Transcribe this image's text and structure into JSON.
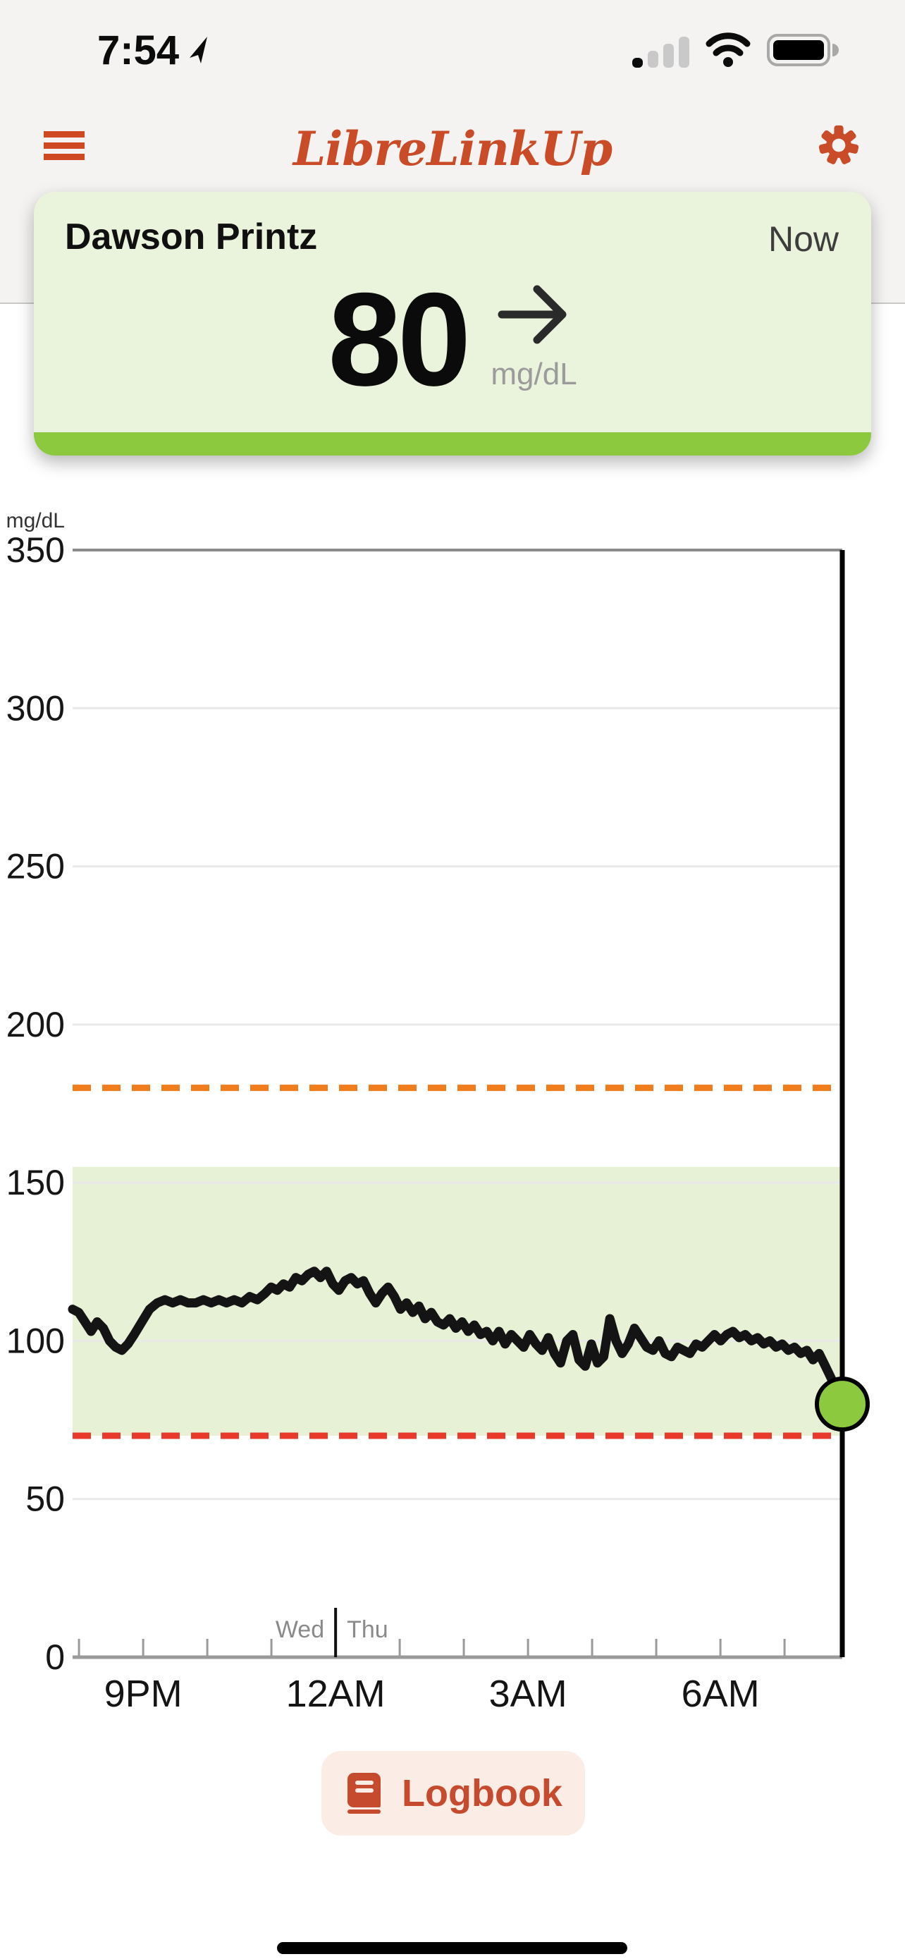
{
  "status_bar": {
    "time": "7:54",
    "icons": [
      "location-arrow",
      "cellular-signal-1-of-4",
      "wifi-full",
      "battery-full"
    ]
  },
  "header": {
    "title": "LibreLinkUp",
    "menu_icon": "hamburger-menu",
    "settings_icon": "gear"
  },
  "patient_card": {
    "name": "Dawson Printz",
    "timestamp_label": "Now",
    "glucose_value": "80",
    "glucose_unit": "mg/dL",
    "trend": "steady-right-arrow",
    "status_color": "#8dc93e",
    "card_background": "#eaf3db"
  },
  "chart_data": {
    "type": "line",
    "ylabel_unit": "mg/dL",
    "ylim": [
      0,
      350
    ],
    "yticks": [
      0,
      50,
      100,
      150,
      200,
      250,
      300,
      350
    ],
    "grid": "horizontal-only",
    "xticks": [
      {
        "label": "9PM",
        "ratio": 0.0917
      },
      {
        "label": "12AM",
        "ratio": 0.3417
      },
      {
        "label": "3AM",
        "ratio": 0.5917
      },
      {
        "label": "6AM",
        "ratio": 0.8417
      }
    ],
    "x_minor_tick_ratios": [
      0.0083,
      0.0917,
      0.175,
      0.2583,
      0.3417,
      0.425,
      0.5083,
      0.5917,
      0.675,
      0.7583,
      0.8417,
      0.925
    ],
    "x_window_hours": 12,
    "day_divider": {
      "ratio": 0.3417,
      "left_label": "Wed",
      "right_label": "Thu"
    },
    "high_threshold": {
      "value": 180,
      "color": "#ef7d1d",
      "style": "dashed"
    },
    "low_threshold": {
      "value": 70,
      "color": "#e9392b",
      "style": "dashed"
    },
    "target_band": {
      "low": 70,
      "high": 155,
      "color": "#e7f1d6"
    },
    "now_line": {
      "ratio": 1.0,
      "color": "#000000"
    },
    "series": [
      {
        "name": "glucose",
        "color": "#141414",
        "points": [
          [
            0.0,
            110
          ],
          [
            0.008,
            109
          ],
          [
            0.016,
            106
          ],
          [
            0.024,
            103
          ],
          [
            0.032,
            106
          ],
          [
            0.04,
            104
          ],
          [
            0.048,
            100
          ],
          [
            0.056,
            98
          ],
          [
            0.064,
            97
          ],
          [
            0.072,
            99
          ],
          [
            0.08,
            102
          ],
          [
            0.09,
            106
          ],
          [
            0.1,
            110
          ],
          [
            0.11,
            112
          ],
          [
            0.12,
            113
          ],
          [
            0.13,
            112
          ],
          [
            0.14,
            113
          ],
          [
            0.15,
            112
          ],
          [
            0.16,
            112
          ],
          [
            0.17,
            113
          ],
          [
            0.18,
            112
          ],
          [
            0.19,
            113
          ],
          [
            0.2,
            112
          ],
          [
            0.21,
            113
          ],
          [
            0.22,
            112
          ],
          [
            0.23,
            114
          ],
          [
            0.24,
            113
          ],
          [
            0.25,
            115
          ],
          [
            0.258,
            117
          ],
          [
            0.266,
            116
          ],
          [
            0.274,
            118
          ],
          [
            0.282,
            117
          ],
          [
            0.29,
            120
          ],
          [
            0.298,
            119
          ],
          [
            0.306,
            121
          ],
          [
            0.314,
            122
          ],
          [
            0.322,
            120
          ],
          [
            0.33,
            122
          ],
          [
            0.338,
            118
          ],
          [
            0.346,
            116
          ],
          [
            0.354,
            119
          ],
          [
            0.362,
            120
          ],
          [
            0.37,
            118
          ],
          [
            0.378,
            119
          ],
          [
            0.386,
            115
          ],
          [
            0.394,
            112
          ],
          [
            0.402,
            115
          ],
          [
            0.41,
            117
          ],
          [
            0.418,
            114
          ],
          [
            0.426,
            110
          ],
          [
            0.434,
            112
          ],
          [
            0.442,
            109
          ],
          [
            0.45,
            111
          ],
          [
            0.458,
            107
          ],
          [
            0.466,
            109
          ],
          [
            0.474,
            106
          ],
          [
            0.482,
            105
          ],
          [
            0.49,
            107
          ],
          [
            0.498,
            104
          ],
          [
            0.506,
            106
          ],
          [
            0.514,
            103
          ],
          [
            0.522,
            105
          ],
          [
            0.53,
            102
          ],
          [
            0.538,
            103
          ],
          [
            0.546,
            100
          ],
          [
            0.554,
            103
          ],
          [
            0.562,
            99
          ],
          [
            0.57,
            102
          ],
          [
            0.578,
            100
          ],
          [
            0.586,
            98
          ],
          [
            0.594,
            102
          ],
          [
            0.602,
            99
          ],
          [
            0.61,
            97
          ],
          [
            0.618,
            101
          ],
          [
            0.626,
            96
          ],
          [
            0.634,
            93
          ],
          [
            0.642,
            100
          ],
          [
            0.65,
            102
          ],
          [
            0.658,
            94
          ],
          [
            0.666,
            92
          ],
          [
            0.674,
            99
          ],
          [
            0.682,
            93
          ],
          [
            0.69,
            95
          ],
          [
            0.698,
            107
          ],
          [
            0.706,
            100
          ],
          [
            0.714,
            96
          ],
          [
            0.722,
            99
          ],
          [
            0.73,
            104
          ],
          [
            0.738,
            101
          ],
          [
            0.746,
            98
          ],
          [
            0.754,
            97
          ],
          [
            0.762,
            100
          ],
          [
            0.77,
            96
          ],
          [
            0.778,
            95
          ],
          [
            0.786,
            98
          ],
          [
            0.794,
            97
          ],
          [
            0.802,
            96
          ],
          [
            0.81,
            99
          ],
          [
            0.818,
            98
          ],
          [
            0.826,
            100
          ],
          [
            0.834,
            102
          ],
          [
            0.842,
            100
          ],
          [
            0.85,
            102
          ],
          [
            0.858,
            103
          ],
          [
            0.866,
            101
          ],
          [
            0.874,
            102
          ],
          [
            0.882,
            100
          ],
          [
            0.89,
            101
          ],
          [
            0.898,
            99
          ],
          [
            0.906,
            100
          ],
          [
            0.914,
            98
          ],
          [
            0.922,
            99
          ],
          [
            0.93,
            97
          ],
          [
            0.938,
            98
          ],
          [
            0.946,
            96
          ],
          [
            0.954,
            97
          ],
          [
            0.962,
            94
          ],
          [
            0.97,
            96
          ],
          [
            0.978,
            92
          ],
          [
            0.986,
            88
          ],
          [
            0.994,
            83
          ],
          [
            1.0,
            80
          ]
        ]
      }
    ],
    "current_point": {
      "ratio": 1.0,
      "value": 80,
      "color": "#8dc93e"
    }
  },
  "logbook_button": {
    "label": "Logbook",
    "icon": "book-icon"
  },
  "colors": {
    "accent_orange": "#c94b28",
    "lime_green": "#8dc93e",
    "header_background": "#f4f3f1",
    "logbook_background": "#fbece5",
    "trace_black": "#141414"
  }
}
